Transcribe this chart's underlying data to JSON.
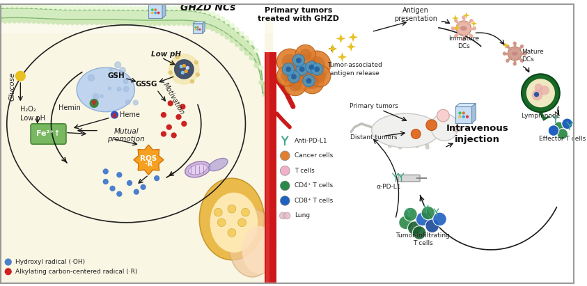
{
  "background_left": "#faf6e4",
  "background_right": "#ffffff",
  "colors": {
    "membrane_outer": "#c8e6b0",
    "membrane_inner": "#a0d090",
    "membrane_bead": "#e8f4d0",
    "membrane_bead2": "#b8d8a0",
    "cell_bg": "#b8d4ee",
    "nucleus_fill": "#c0d8f0",
    "nucleus_edge": "#90b8e0",
    "np_dark": "#4a5878",
    "np_glow": "#e8d080",
    "fe_green": "#78b860",
    "ros_orange": "#f5a020",
    "ros_edge": "#e07800",
    "arrow_dark": "#1a1a1a",
    "hemin_red": "#cc2222",
    "dot_blue": "#4a80cc",
    "dot_red": "#cc2222",
    "tumor_orange": "#e08030",
    "tumor_orange2": "#f09040",
    "tumor_blue_cell": "#4898c8",
    "tumor_blue_dark": "#2870a0",
    "blood_red": "#cc1010",
    "dc_peach": "#e8a090",
    "dc_peach2": "#d09080",
    "lymph_dark_green": "#1a6828",
    "lymph_inner": "#f0e8c8",
    "label_color": "#222222",
    "text_dark": "#111111",
    "glucose_yellow": "#e8c020",
    "green_dot": "#3a8840",
    "blue_dot_sm": "#3060b0",
    "mitochondria": "#c8b0d8",
    "organelle_orange": "#e8b840",
    "organelle_cream": "#f8e8b0",
    "organelle_skin": "#f0c898",
    "antibody_teal": "#40a888"
  },
  "left_panel": {
    "title": "GHZD NCs",
    "labels": {
      "glucose": "Glucose",
      "low_ph": "Low pH",
      "gsh": "GSH",
      "gssg": "GSSG",
      "hemin": "Hemin",
      "heme": "Heme",
      "h2o2": "H₂O₂\nLow pH",
      "fe2": "Fe²⁺",
      "mutual": "Mutual\npromotion",
      "motivation": "Motivation",
      "ros": "ROS\n·R"
    },
    "legend": {
      "hydroxyl": "Hydroxyl radical (·OH)",
      "alkylating": "Alkylating carbon-centered radical (·R)"
    }
  },
  "right_panel": {
    "primary_tumor_label": "Primary tumors\ntreated with GHZD",
    "antigen_release_label": "Tumor-associated\nantigen release",
    "antigen_presentation_label": "Antigen\npresentation",
    "immature_dc_label": "Immature\nDCs",
    "mature_dc_label": "Mature\nDCs",
    "lymph_node_label": "Lymph node",
    "effector_t_label": "Effector T cells",
    "primary_tumors_label": "Primary tumors",
    "distant_tumors_label": "Distant tumors",
    "intravenous_label": "Intravenous\ninjection",
    "tumor_infiltrating_label": "Tumor-infiltrating\nT cells",
    "alpha_pd_l1_label": "α-PD-L1",
    "legend": {
      "anti_pd_l1": "Anti-PD-L1",
      "cancer_cells": "Cancer cells",
      "t_cells": "T cells",
      "cd4_t_cells": "CD4⁺ T cells",
      "cd8_t_cells": "CD8⁺ T cells",
      "lung": "Lung"
    }
  }
}
